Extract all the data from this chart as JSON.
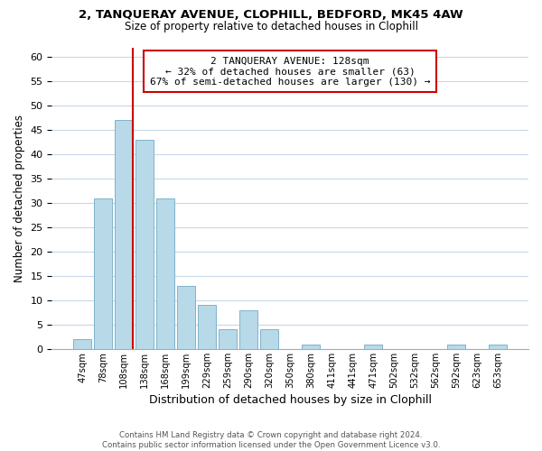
{
  "title": "2, TANQUERAY AVENUE, CLOPHILL, BEDFORD, MK45 4AW",
  "subtitle": "Size of property relative to detached houses in Clophill",
  "xlabel": "Distribution of detached houses by size in Clophill",
  "ylabel": "Number of detached properties",
  "footer_lines": [
    "Contains HM Land Registry data © Crown copyright and database right 2024.",
    "Contains public sector information licensed under the Open Government Licence v3.0."
  ],
  "bin_labels": [
    "47sqm",
    "78sqm",
    "108sqm",
    "138sqm",
    "168sqm",
    "199sqm",
    "229sqm",
    "259sqm",
    "290sqm",
    "320sqm",
    "350sqm",
    "380sqm",
    "411sqm",
    "441sqm",
    "471sqm",
    "502sqm",
    "532sqm",
    "562sqm",
    "592sqm",
    "623sqm",
    "653sqm"
  ],
  "bar_heights": [
    2,
    31,
    47,
    43,
    31,
    13,
    9,
    4,
    8,
    4,
    0,
    1,
    0,
    0,
    1,
    0,
    0,
    0,
    1,
    0,
    1
  ],
  "bar_color": "#b8d9e8",
  "bar_edge_color": "#7fb3cc",
  "grid_color": "#c8d8e8",
  "vline_color": "#cc0000",
  "annotation_text_line1": "2 TANQUERAY AVENUE: 128sqm",
  "annotation_text_line2": "← 32% of detached houses are smaller (63)",
  "annotation_text_line3": "67% of semi-detached houses are larger (130) →",
  "annotation_box_color": "#ffffff",
  "annotation_box_edge": "#cc0000",
  "ylim": [
    0,
    62
  ],
  "yticks": [
    0,
    5,
    10,
    15,
    20,
    25,
    30,
    35,
    40,
    45,
    50,
    55,
    60
  ]
}
